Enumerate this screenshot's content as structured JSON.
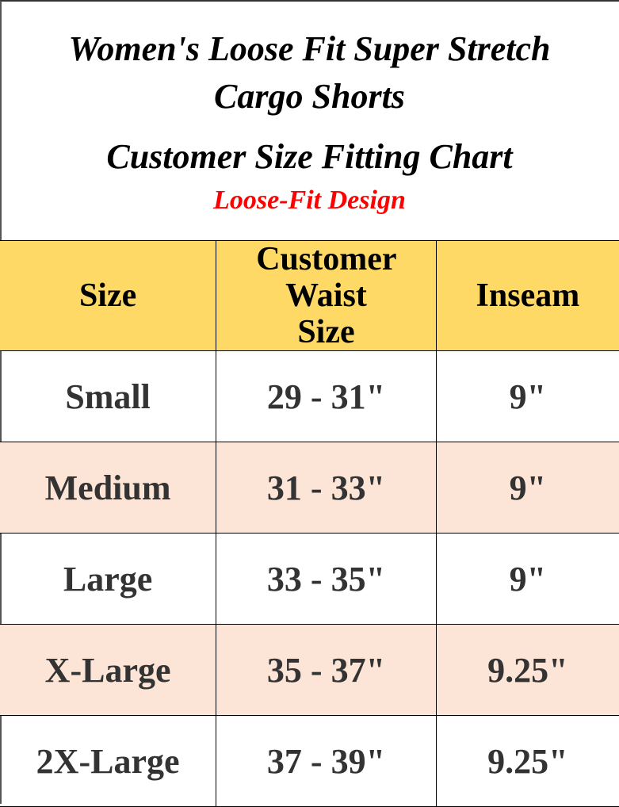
{
  "title": {
    "line1": "Women's Loose Fit Super Stretch",
    "line2": "Cargo Shorts",
    "line3": "Customer Size Fitting Chart",
    "subtitle": "Loose-Fit Design"
  },
  "colors": {
    "header_bg": "#ffd966",
    "alt_row_bg": "#fce4d6",
    "subtitle": "#ff0000"
  },
  "table": {
    "headers": [
      "Size",
      "Customer Waist Size",
      "Inseam"
    ],
    "rows": [
      [
        "Small",
        "29 - 31\"",
        "9\""
      ],
      [
        "Medium",
        "31 - 33\"",
        "9\""
      ],
      [
        "Large",
        "33 - 35\"",
        "9\""
      ],
      [
        "X-Large",
        "35 - 37\"",
        "9.25\""
      ],
      [
        "2X-Large",
        "37 - 39\"",
        "9.25\""
      ]
    ]
  }
}
